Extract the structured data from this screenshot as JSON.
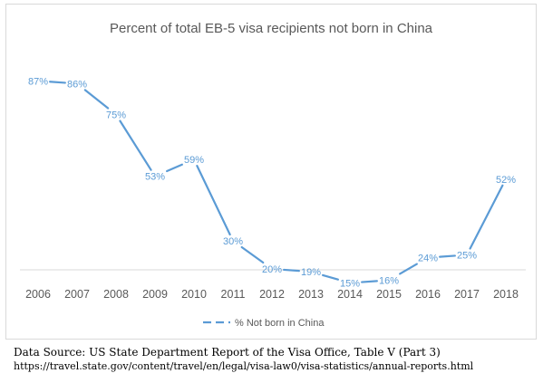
{
  "chart_data": {
    "type": "line",
    "title": "Percent of total EB-5 visa recipients not born in China",
    "xlabel": "",
    "ylabel": "",
    "x": [
      "2006",
      "2007",
      "2008",
      "2009",
      "2010",
      "2011",
      "2012",
      "2013",
      "2014",
      "2015",
      "2016",
      "2017",
      "2018"
    ],
    "series": [
      {
        "name": "% Not born in China",
        "values": [
          87,
          86,
          75,
          53,
          59,
          30,
          20,
          19,
          15,
          16,
          24,
          25,
          52
        ],
        "labels": [
          "87%",
          "86%",
          "75%",
          "53%",
          "59%",
          "30%",
          "20%",
          "19%",
          "15%",
          "16%",
          "24%",
          "25%",
          "52%"
        ],
        "color": "#5b9bd5"
      }
    ],
    "ylim": [
      0,
      100
    ],
    "grid": false,
    "legend": "bottom"
  },
  "source": {
    "line": "Data Source: US State Department Report of the Visa Office, Table V (Part 3)",
    "url": "https://travel.state.gov/content/travel/en/legal/visa-law0/visa-statistics/annual-reports.html"
  }
}
